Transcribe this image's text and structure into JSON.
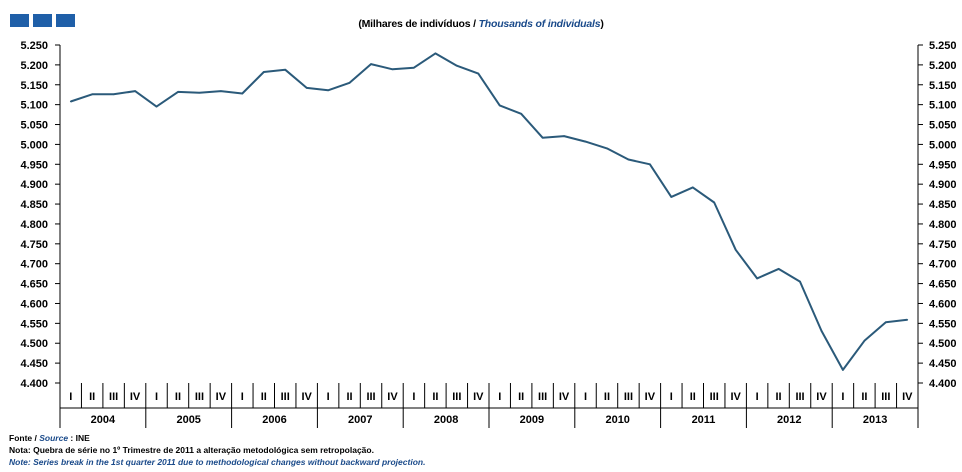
{
  "header": {
    "unit_pt": "(Milhares  de indivíduos  / ",
    "unit_en": "Thousands  of individuals",
    "unit_close": ")",
    "accent_color": "#1f5fa8"
  },
  "footer": {
    "source_label": "Fonte / ",
    "source_label_en": "Source",
    "source_value": "  : INE",
    "note_pt": "Nota: Quebra de série no 1º Trimestre de 2011 a alteração metodológica sem retropolação.",
    "note_en": "Note: Series break in the 1st quarter 2011 due to methodological changes without backward projection."
  },
  "chart_data": {
    "type": "line",
    "title": "",
    "xlabel": "",
    "ylabel": "",
    "ylim": [
      4400,
      5250
    ],
    "y_ticks": [
      "4.400",
      "4.450",
      "4.500",
      "4.550",
      "4.600",
      "4.650",
      "4.700",
      "4.750",
      "4.800",
      "4.850",
      "4.900",
      "4.950",
      "5.000",
      "5.050",
      "5.100",
      "5.150",
      "5.200",
      "5.250"
    ],
    "quarter_labels": [
      "I",
      "II",
      "III",
      "IV"
    ],
    "years": [
      "2004",
      "2005",
      "2006",
      "2007",
      "2008",
      "2009",
      "2010",
      "2011",
      "2012",
      "2013"
    ],
    "line_color": "#2b5a7a",
    "grid": false,
    "series": [
      {
        "values": [
          5108,
          5126,
          5126,
          5134,
          5095,
          5132,
          5130,
          5134,
          5128,
          5182,
          5188,
          5142,
          5136,
          5155,
          5202,
          5189,
          5193,
          5229,
          5198,
          5178,
          5098,
          5077,
          5017,
          5021,
          5007,
          4990,
          4962,
          4950,
          4868,
          4892,
          4854,
          4735,
          4663,
          4687,
          4655,
          4531,
          4433,
          4506,
          4553,
          4559
        ]
      }
    ]
  }
}
